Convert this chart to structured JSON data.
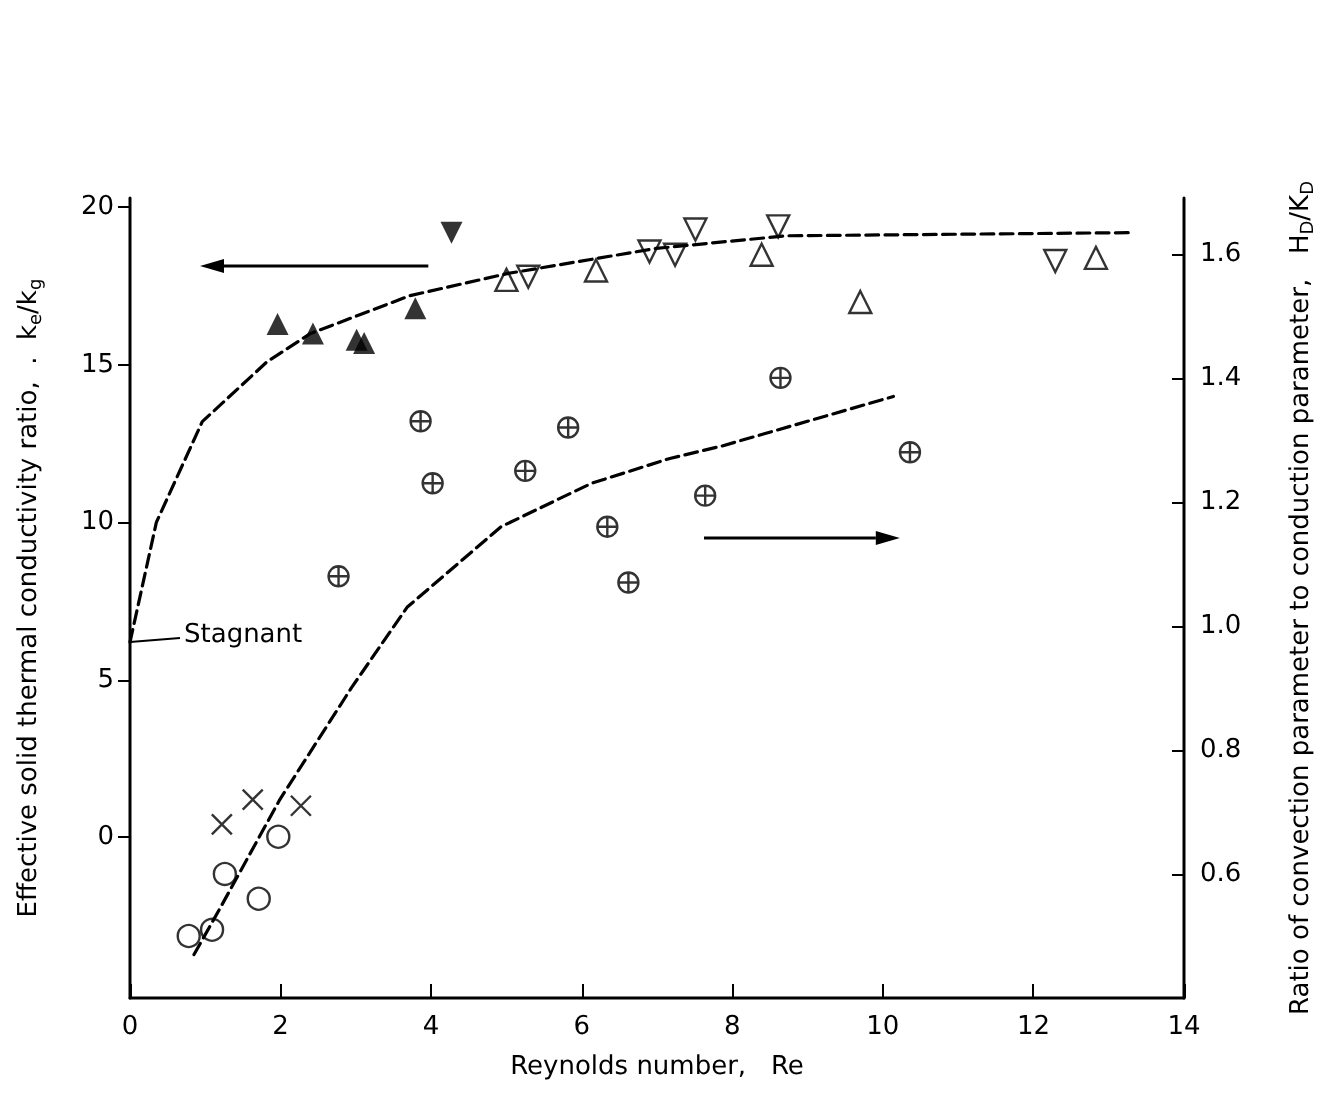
{
  "chart_data": {
    "type": "scatter",
    "xlabel": "Reynolds number,   Re",
    "ylabel": "Effective solid thermal conductivity ratio,  .  k$_{e}$/k$_{g}$",
    "y2label": "Ratio of convection parameter to conduction parameter,   H$_{D}$/K$_{D}$",
    "annotations": [
      {
        "text": "Stagnant",
        "x": 0,
        "y": 6.2
      }
    ],
    "xlim": [
      0,
      14
    ],
    "xticks": [
      0,
      2,
      4,
      6,
      8,
      10,
      12,
      14
    ],
    "ylim": [
      -5.1,
      20.3
    ],
    "yticks": [
      0,
      5,
      10,
      15,
      20
    ],
    "y2lim": [
      0.4,
      1.69
    ],
    "y2ticks": [
      {
        "value": 0.6,
        "label": "0.6"
      },
      {
        "value": 0.8,
        "label": "0.8"
      },
      {
        "value": 1.0,
        "label": "1.0"
      },
      {
        "value": 1.2,
        "label": "1.2"
      },
      {
        "value": 1.4,
        "label": "1.4"
      },
      {
        "value": 1.6,
        "label": "1.6"
      }
    ],
    "grid": false,
    "series": [
      {
        "marker": "triangle",
        "color": "#000000",
        "x": [
          1.96,
          2.43,
          3.01,
          3.11,
          3.79
        ],
        "values": [
          16.3,
          16.0,
          15.8,
          15.7,
          16.8
        ]
      },
      {
        "marker": "triangle-down",
        "color": "#000000",
        "x": [
          4.27
        ],
        "values": [
          19.2
        ]
      },
      {
        "marker": "triangle-open",
        "color": "#000000",
        "x": [
          5.0,
          6.19,
          8.39,
          9.7,
          12.83
        ],
        "values": [
          17.7,
          18.0,
          18.5,
          17.0,
          18.4
        ]
      },
      {
        "marker": "triangle-down-open",
        "color": "#000000",
        "x": [
          5.29,
          6.9,
          7.24,
          7.51,
          8.61,
          12.29
        ],
        "values": [
          17.8,
          18.6,
          18.5,
          19.3,
          19.4,
          18.3
        ]
      },
      {
        "axis": "y2",
        "marker": "cross",
        "color": "#000000",
        "x": [
          2.77,
          3.86,
          5.82,
          6.34,
          6.62,
          7.64,
          8.64,
          10.36
        ],
        "values": [
          1.08,
          1.33,
          1.32,
          1.16,
          1.07,
          1.21,
          1.4,
          1.28
        ]
      },
      {
        "axis": "y2",
        "marker": "cross",
        "color": "#000000",
        "x": [
          4.02,
          5.25
        ],
        "values": [
          1.23,
          1.25
        ]
      },
      {
        "axis": "y2",
        "marker": "circle-open",
        "color": "#000000",
        "x": [
          0.78,
          1.09,
          1.26,
          1.71,
          1.97
        ],
        "values": [
          0.5,
          0.51,
          0.6,
          0.56,
          0.66
        ]
      },
      {
        "axis": "y2",
        "marker": "x",
        "color": "#000000",
        "x": [
          1.22,
          1.63,
          2.27
        ],
        "values": [
          0.68,
          0.72,
          0.71
        ]
      },
      {
        "type": "line",
        "line_style": "dashed",
        "marker": "none",
        "color": "#000000",
        "x": [
          0,
          0.35,
          0.96,
          1.82,
          2.4,
          3.72,
          5.01,
          6.99,
          8.72,
          13.3
        ],
        "values": [
          6.2,
          10.0,
          13.2,
          15.1,
          16.0,
          17.2,
          17.9,
          18.7,
          19.1,
          19.2
        ]
      },
      {
        "type": "line",
        "axis": "y2",
        "line_style": "dashed",
        "marker": "none",
        "color": "#000000",
        "x": [
          0.85,
          1.22,
          1.99,
          2.94,
          3.68,
          4.93,
          6.13,
          7.17,
          7.86,
          10.14
        ],
        "values": [
          0.47,
          0.55,
          0.72,
          0.9,
          1.03,
          1.16,
          1.23,
          1.27,
          1.29,
          1.37
        ]
      }
    ]
  }
}
